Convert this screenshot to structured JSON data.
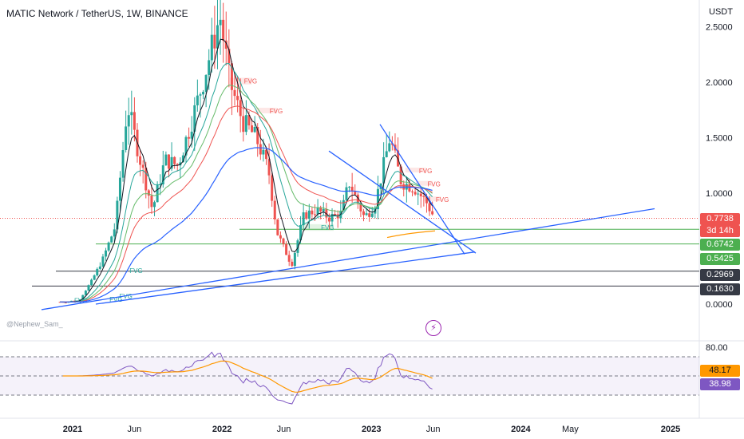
{
  "header": {
    "title": "MATIC Network / TetherUS, 1W, BINANCE",
    "currency": "USDT",
    "watermark": "@Nephew_Sam_"
  },
  "price_tags": {
    "last_price": "0.7738",
    "countdown": "3d 14h",
    "level_a": "0.6742",
    "level_b": "0.5425",
    "level_c": "0.2969",
    "level_d": "0.1630",
    "rsi_a": "48.17",
    "rsi_b": "38.98"
  },
  "fvg_label": "FVG",
  "colors": {
    "up": "#26a69a",
    "down": "#ef5350",
    "ema_short": "#131722",
    "ema_mid": "#26a69a",
    "ema_long": "#ef5350",
    "ema_200": "#2962ff",
    "trend": "#2962ff",
    "support_green": "#4caf50",
    "rsi": "#7e57c2",
    "rsi_ma": "#ff9800",
    "accent": "#9c27b0"
  },
  "chart_data": [
    {
      "type": "candlestick",
      "title": "MATIC Network / TetherUS, 1W, BINANCE",
      "y_unit": "USDT",
      "ylim": [
        0.0,
        2.9
      ],
      "y_ticks": [
        "2.5000",
        "2.0000",
        "1.5000",
        "1.0000",
        "0.0000"
      ],
      "x_ticks": [
        "2021",
        "Jun",
        "2022",
        "Jun",
        "2023",
        "Jun",
        "2024",
        "May",
        "2025"
      ],
      "price_path": [
        [
          "2020-12-01",
          0.02
        ],
        [
          "2021-01-15",
          0.03
        ],
        [
          "2021-02-15",
          0.2
        ],
        [
          "2021-03-15",
          0.4
        ],
        [
          "2021-04-15",
          0.7
        ],
        [
          "2021-05-15",
          1.8
        ],
        [
          "2021-06-15",
          1.3
        ],
        [
          "2021-07-15",
          0.85
        ],
        [
          "2021-08-15",
          1.3
        ],
        [
          "2021-09-15",
          1.25
        ],
        [
          "2021-10-15",
          1.6
        ],
        [
          "2021-11-15",
          2.0
        ],
        [
          "2021-12-27",
          2.6
        ],
        [
          "2022-01-20",
          2.0
        ],
        [
          "2022-02-20",
          1.65
        ],
        [
          "2022-03-25",
          1.5
        ],
        [
          "2022-04-25",
          1.2
        ],
        [
          "2022-05-15",
          0.65
        ],
        [
          "2022-06-20",
          0.35
        ],
        [
          "2022-07-20",
          0.8
        ],
        [
          "2022-08-20",
          0.85
        ],
        [
          "2022-09-20",
          0.78
        ],
        [
          "2022-10-20",
          0.82
        ],
        [
          "2022-11-07",
          1.1
        ],
        [
          "2022-12-15",
          0.78
        ],
        [
          "2023-01-10",
          0.9
        ],
        [
          "2023-02-15",
          1.5
        ],
        [
          "2023-03-15",
          1.1
        ],
        [
          "2023-04-15",
          1.05
        ],
        [
          "2023-05-15",
          0.92
        ],
        [
          "2023-06-05",
          0.77
        ]
      ],
      "horizontal_levels": [
        0.7738,
        0.6742,
        0.5425,
        0.2969,
        0.163
      ],
      "fvg_zones": [
        {
          "start": "2022-01-20",
          "end": "2022-03-15",
          "low": 1.98,
          "high": 2.04
        },
        {
          "start": "2022-03-25",
          "end": "2022-05-15",
          "low": 1.72,
          "high": 1.77
        },
        {
          "start": "2023-03-25",
          "end": "2023-05-15",
          "low": 1.2,
          "high": 1.23
        },
        {
          "start": "2023-04-20",
          "end": "2023-05-30",
          "low": 1.08,
          "high": 1.11
        },
        {
          "start": "2023-05-10",
          "end": "2023-06-20",
          "low": 0.94,
          "high": 0.97
        },
        {
          "start": "2022-07-15",
          "end": "2022-10-01",
          "low": 0.66,
          "high": 0.72
        }
      ]
    },
    {
      "type": "line",
      "title": "",
      "ylim": [
        0,
        100
      ],
      "y_ticks": [
        "80.00"
      ],
      "band": [
        30,
        70
      ],
      "values_tagged": [
        48.17,
        38.98
      ]
    }
  ]
}
